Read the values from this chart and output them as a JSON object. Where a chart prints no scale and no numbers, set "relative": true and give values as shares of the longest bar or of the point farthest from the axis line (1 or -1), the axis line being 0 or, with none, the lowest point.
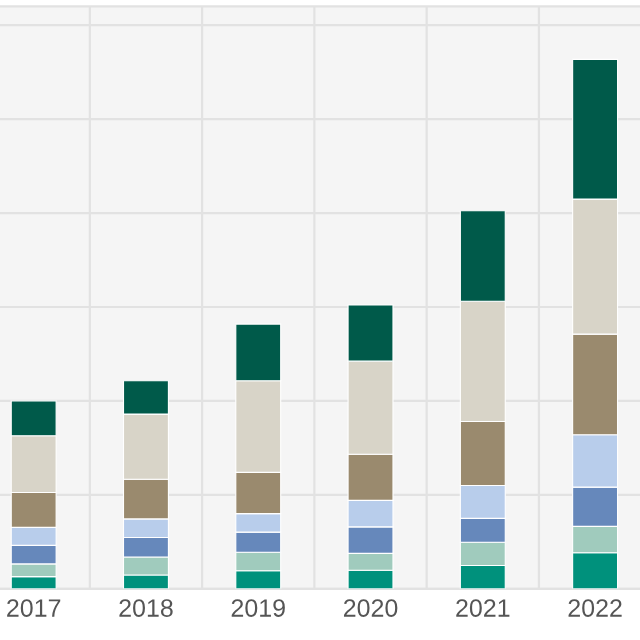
{
  "chart_data": {
    "type": "bar",
    "stacked": true,
    "relative": true,
    "grid": true,
    "legend": false,
    "categories": [
      "2017",
      "2018",
      "2019",
      "2020",
      "2021",
      "2022"
    ],
    "series": [
      {
        "color": "#00917c",
        "values": [
          0.023,
          0.026,
          0.034,
          0.035,
          0.044,
          0.068
        ]
      },
      {
        "color": "#a0cbbd",
        "values": [
          0.024,
          0.034,
          0.035,
          0.032,
          0.044,
          0.05
        ]
      },
      {
        "color": "#6688bb",
        "values": [
          0.035,
          0.037,
          0.038,
          0.05,
          0.045,
          0.074
        ]
      },
      {
        "color": "#b8cdeb",
        "values": [
          0.034,
          0.035,
          0.035,
          0.05,
          0.062,
          0.099
        ]
      },
      {
        "color": "#9a8a6e",
        "values": [
          0.066,
          0.075,
          0.078,
          0.087,
          0.121,
          0.19
        ]
      },
      {
        "color": "#d8d4c8",
        "values": [
          0.107,
          0.123,
          0.173,
          0.176,
          0.227,
          0.255
        ]
      },
      {
        "color": "#005a4a",
        "values": [
          0.066,
          0.063,
          0.107,
          0.106,
          0.171,
          0.264
        ]
      }
    ]
  }
}
